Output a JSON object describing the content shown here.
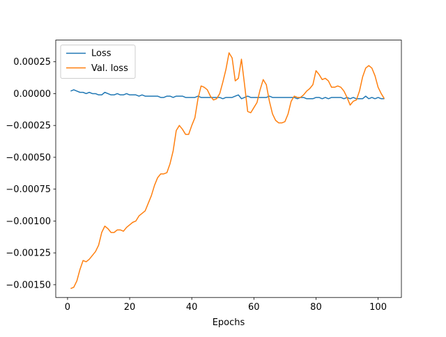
{
  "chart_data": {
    "type": "line",
    "title": "",
    "xlabel": "Epochs",
    "ylabel": "",
    "xlim": [
      -3.8,
      107.5
    ],
    "ylim": [
      -0.0016,
      0.00042
    ],
    "xticks": [
      0,
      20,
      40,
      60,
      80,
      100
    ],
    "xtick_labels": [
      "0",
      "20",
      "40",
      "60",
      "80",
      "100"
    ],
    "yticks": [
      -0.0015,
      -0.00125,
      -0.001,
      -0.00075,
      -0.0005,
      -0.00025,
      0.0,
      0.00025
    ],
    "ytick_labels": [
      "−0.00150",
      "−0.00125",
      "−0.00100",
      "−0.00075",
      "−0.00050",
      "−0.00025",
      "0.00000",
      "0.00025"
    ],
    "grid": false,
    "legend_position": "upper-left",
    "series": [
      {
        "name": "Loss",
        "color": "#1f77b4",
        "x": [
          1,
          2,
          3,
          4,
          5,
          6,
          7,
          8,
          9,
          10,
          11,
          12,
          13,
          14,
          15,
          16,
          17,
          18,
          19,
          20,
          21,
          22,
          23,
          24,
          25,
          26,
          27,
          28,
          29,
          30,
          31,
          32,
          33,
          34,
          35,
          36,
          37,
          38,
          39,
          40,
          41,
          42,
          43,
          44,
          45,
          46,
          47,
          48,
          49,
          50,
          51,
          52,
          53,
          54,
          55,
          56,
          57,
          58,
          59,
          60,
          61,
          62,
          63,
          64,
          65,
          66,
          67,
          68,
          69,
          70,
          71,
          72,
          73,
          74,
          75,
          76,
          77,
          78,
          79,
          80,
          81,
          82,
          83,
          84,
          85,
          86,
          87,
          88,
          89,
          90,
          91,
          92,
          93,
          94,
          95,
          96,
          97,
          98,
          99,
          100,
          101,
          102
        ],
        "y": [
          2e-05,
          3e-05,
          2e-05,
          1e-05,
          1e-05,
          0.0,
          1e-05,
          0.0,
          0.0,
          -1e-05,
          -1e-05,
          1e-05,
          0.0,
          -1e-05,
          -1e-05,
          0.0,
          -1e-05,
          -1e-05,
          0.0,
          -1e-05,
          -1e-05,
          -1e-05,
          -2e-05,
          -1e-05,
          -2e-05,
          -2e-05,
          -2e-05,
          -2e-05,
          -2e-05,
          -3e-05,
          -3e-05,
          -2e-05,
          -2e-05,
          -3e-05,
          -2e-05,
          -2e-05,
          -2e-05,
          -3e-05,
          -3e-05,
          -3e-05,
          -3e-05,
          -2e-05,
          -3e-05,
          -3e-05,
          -3e-05,
          -3e-05,
          -3e-05,
          -3e-05,
          -3e-05,
          -4e-05,
          -3e-05,
          -3e-05,
          -3e-05,
          -2e-05,
          -1e-05,
          -4e-05,
          -3e-05,
          -2e-05,
          -3e-05,
          -3e-05,
          -3e-05,
          -3e-05,
          -3e-05,
          -3e-05,
          -2e-05,
          -3e-05,
          -3e-05,
          -3e-05,
          -3e-05,
          -3e-05,
          -3e-05,
          -3e-05,
          -3e-05,
          -4e-05,
          -3e-05,
          -3e-05,
          -4e-05,
          -4e-05,
          -4e-05,
          -3e-05,
          -3e-05,
          -4e-05,
          -3e-05,
          -4e-05,
          -3e-05,
          -3e-05,
          -3e-05,
          -3e-05,
          -4e-05,
          -3e-05,
          -4e-05,
          -3e-05,
          -4e-05,
          -4e-05,
          -4e-05,
          -2e-05,
          -4e-05,
          -3e-05,
          -4e-05,
          -3e-05,
          -4e-05,
          -4e-05
        ]
      },
      {
        "name": "Val. loss",
        "color": "#ff7f0e",
        "x": [
          1,
          2,
          3,
          4,
          5,
          6,
          7,
          8,
          9,
          10,
          11,
          12,
          13,
          14,
          15,
          16,
          17,
          18,
          19,
          20,
          21,
          22,
          23,
          24,
          25,
          26,
          27,
          28,
          29,
          30,
          31,
          32,
          33,
          34,
          35,
          36,
          37,
          38,
          39,
          40,
          41,
          42,
          43,
          44,
          45,
          46,
          47,
          48,
          49,
          50,
          51,
          52,
          53,
          54,
          55,
          56,
          57,
          58,
          59,
          60,
          61,
          62,
          63,
          64,
          65,
          66,
          67,
          68,
          69,
          70,
          71,
          72,
          73,
          74,
          75,
          76,
          77,
          78,
          79,
          80,
          81,
          82,
          83,
          84,
          85,
          86,
          87,
          88,
          89,
          90,
          91,
          92,
          93,
          94,
          95,
          96,
          97,
          98,
          99,
          100,
          101,
          102
        ],
        "y": [
          -0.00153,
          -0.00152,
          -0.00147,
          -0.00138,
          -0.00131,
          -0.00132,
          -0.0013,
          -0.00127,
          -0.00124,
          -0.00119,
          -0.00109,
          -0.00104,
          -0.00106,
          -0.00109,
          -0.00109,
          -0.00107,
          -0.00107,
          -0.00108,
          -0.00105,
          -0.00103,
          -0.00101,
          -0.001,
          -0.00096,
          -0.00094,
          -0.00092,
          -0.00086,
          -0.0008,
          -0.00072,
          -0.00066,
          -0.00063,
          -0.00063,
          -0.00062,
          -0.00055,
          -0.00045,
          -0.00029,
          -0.00025,
          -0.00028,
          -0.00032,
          -0.00032,
          -0.00025,
          -0.00019,
          -4e-05,
          6e-05,
          5e-05,
          3e-05,
          -2e-05,
          -5e-05,
          -4e-05,
          0.0,
          9e-05,
          0.00019,
          0.00032,
          0.00028,
          0.0001,
          0.00012,
          0.00027,
          7e-05,
          -0.00014,
          -0.00015,
          -0.00011,
          -7e-05,
          3e-05,
          0.00011,
          7e-05,
          -6e-05,
          -0.00016,
          -0.00021,
          -0.00023,
          -0.00023,
          -0.00022,
          -0.00016,
          -6e-05,
          -2e-05,
          -3e-05,
          -3e-05,
          -1e-05,
          2e-05,
          4e-05,
          7e-05,
          0.00018,
          0.00015,
          0.00011,
          0.00012,
          0.0001,
          5e-05,
          5e-05,
          6e-05,
          5e-05,
          2e-05,
          -3e-05,
          -9e-05,
          -6e-05,
          -5e-05,
          2e-05,
          0.00013,
          0.0002,
          0.00022,
          0.0002,
          0.00014,
          5e-05,
          0.0,
          -4e-05
        ]
      }
    ]
  }
}
